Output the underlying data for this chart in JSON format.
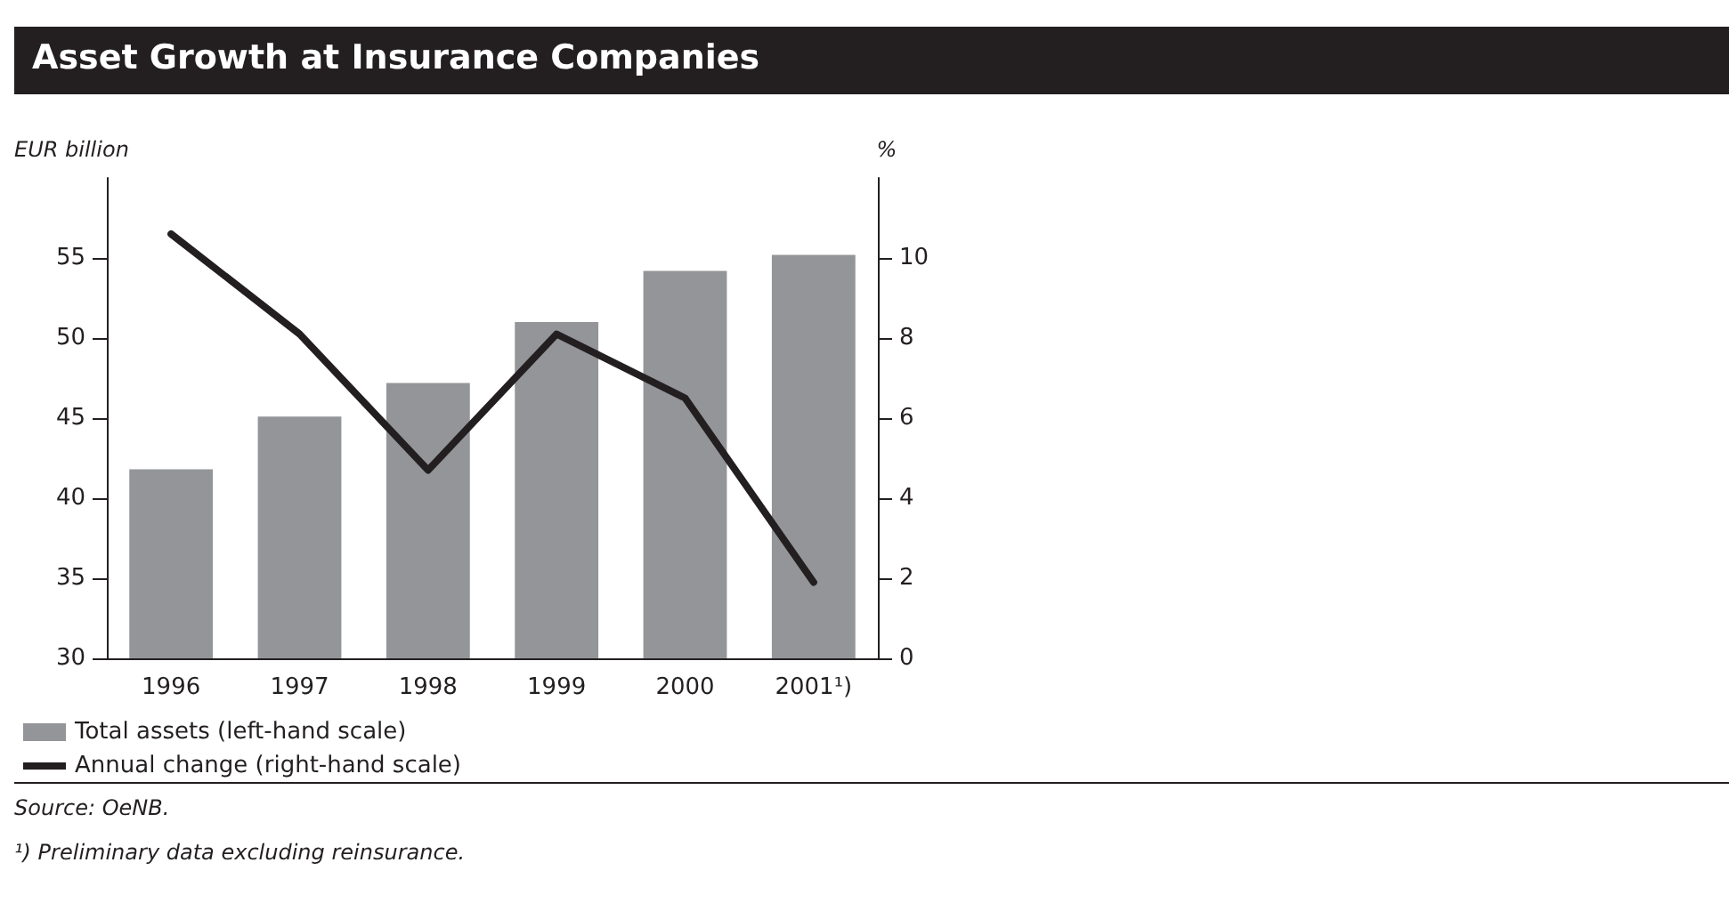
{
  "chart_data": {
    "type": "bar",
    "title": "Asset Growth at Insurance Companies",
    "categories": [
      "1996",
      "1997",
      "1998",
      "1999",
      "2000",
      "2001¹)"
    ],
    "series": [
      {
        "name": "Total assets (left-hand scale)",
        "color": "#939598",
        "values": [
          41.8,
          45.1,
          47.2,
          51.0,
          54.2,
          55.2
        ]
      },
      {
        "name": "Annual change (right-hand scale)",
        "type": "line",
        "axis": "y2",
        "color": "#231f20",
        "values": [
          10.6,
          8.1,
          4.7,
          8.1,
          6.5,
          1.9
        ]
      }
    ],
    "ylabel": "EUR billion",
    "y2label": "%",
    "ylim": [
      30,
      60
    ],
    "yticks": [
      30,
      35,
      40,
      45,
      50,
      55
    ],
    "y2lim": [
      0,
      12
    ],
    "y2ticks": [
      0,
      2,
      4,
      6,
      8,
      10
    ],
    "grid": false,
    "legend": "bottom left",
    "marker": "none",
    "line_style": "solid",
    "annotations": [
      "Source: OeNB.",
      "¹) Preliminary data excluding reinsurance."
    ]
  }
}
